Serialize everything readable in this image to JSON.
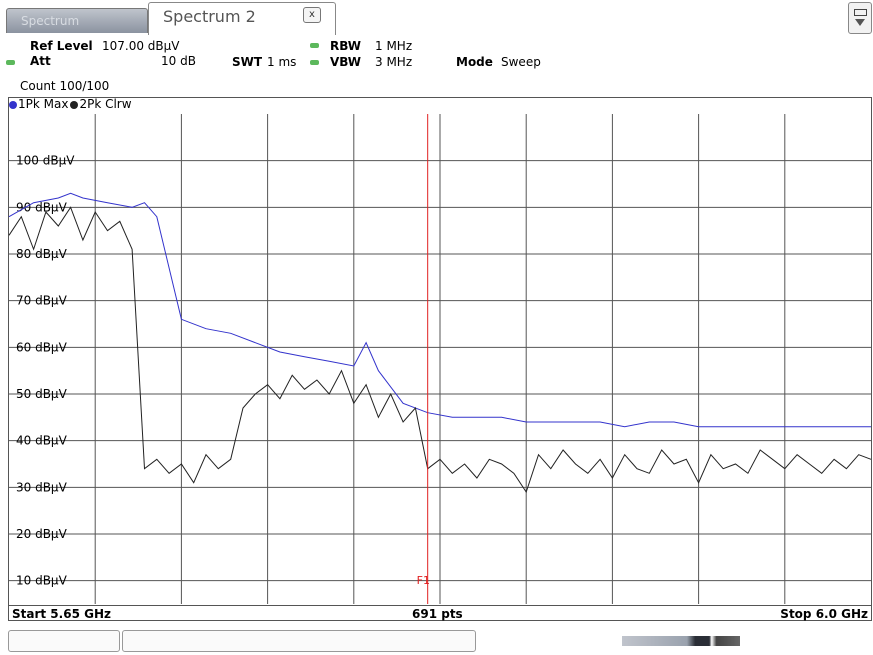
{
  "tabs": [
    {
      "label": "Spectrum",
      "active": false
    },
    {
      "label": "Spectrum 2",
      "active": true
    }
  ],
  "icons": {
    "tab_close": "close-icon",
    "corner": "grid-menu-icon"
  },
  "settings": {
    "ref_level_label": "Ref Level",
    "ref_level_value": "107.00 dBµV",
    "att_label": "Att",
    "att_value": "10 dB",
    "swt_label": "SWT",
    "swt_value": "1 ms",
    "rbw_label": "RBW",
    "rbw_value": "1 MHz",
    "vbw_label": "VBW",
    "vbw_value": "3 MHz",
    "mode_label": "Mode",
    "mode_value": "Sweep",
    "count": "Count 100/100",
    "indicator_color": "#5cb85c"
  },
  "trace_legend": [
    {
      "label": "1Pk Max",
      "color": "#3333cc"
    },
    {
      "label": "2Pk Clrw",
      "color": "#222222"
    }
  ],
  "footer": {
    "start": "Start 5.65 GHz",
    "center": "691 pts",
    "stop": "Stop 6.0 GHz"
  },
  "chart_data": {
    "type": "line",
    "xlim": [
      5.65,
      6.0
    ],
    "ylim": [
      5,
      110
    ],
    "yticks": [
      {
        "value": 100,
        "label": "100 dBµV"
      },
      {
        "value": 90,
        "label": "90 dBµV"
      },
      {
        "value": 80,
        "label": "80 dBµV"
      },
      {
        "value": 70,
        "label": "70 dBµV"
      },
      {
        "value": 60,
        "label": "60 dBµV"
      },
      {
        "value": 50,
        "label": "50 dBµV"
      },
      {
        "value": 40,
        "label": "40 dBµV"
      },
      {
        "value": 30,
        "label": "30 dBµV"
      },
      {
        "value": 20,
        "label": "20 dBµV"
      },
      {
        "value": 10,
        "label": "10 dBµV"
      }
    ],
    "x_gridlines": 10,
    "grid": true,
    "marker": {
      "label": "F1",
      "x": 5.82,
      "color": "#e02020"
    },
    "series": [
      {
        "color": "#3333cc",
        "x": [
          5.65,
          5.66,
          5.67,
          5.675,
          5.68,
          5.69,
          5.7,
          5.705,
          5.71,
          5.72,
          5.73,
          5.74,
          5.75,
          5.76,
          5.77,
          5.78,
          5.79,
          5.795,
          5.8,
          5.81,
          5.82,
          5.83,
          5.84,
          5.85,
          5.86,
          5.87,
          5.88,
          5.89,
          5.9,
          5.91,
          5.92,
          5.93,
          5.94,
          5.95,
          5.96,
          5.97,
          5.98,
          5.99,
          6.0
        ],
        "y": [
          88,
          91,
          92,
          93,
          92,
          91,
          90,
          91,
          88,
          66,
          64,
          63,
          61,
          59,
          58,
          57,
          56,
          61,
          55,
          48,
          46,
          45,
          45,
          45,
          44,
          44,
          44,
          44,
          43,
          44,
          44,
          43,
          43,
          43,
          43,
          43,
          43,
          43,
          43
        ]
      },
      {
        "color": "#222222",
        "x": [
          5.65,
          5.655,
          5.66,
          5.665,
          5.67,
          5.675,
          5.68,
          5.685,
          5.69,
          5.695,
          5.7,
          5.705,
          5.71,
          5.715,
          5.72,
          5.725,
          5.73,
          5.735,
          5.74,
          5.745,
          5.75,
          5.755,
          5.76,
          5.765,
          5.77,
          5.775,
          5.78,
          5.785,
          5.79,
          5.795,
          5.8,
          5.805,
          5.81,
          5.815,
          5.82,
          5.825,
          5.83,
          5.835,
          5.84,
          5.845,
          5.85,
          5.855,
          5.86,
          5.865,
          5.87,
          5.875,
          5.88,
          5.885,
          5.89,
          5.895,
          5.9,
          5.905,
          5.91,
          5.915,
          5.92,
          5.925,
          5.93,
          5.935,
          5.94,
          5.945,
          5.95,
          5.955,
          5.96,
          5.965,
          5.97,
          5.975,
          5.98,
          5.985,
          5.99,
          5.995,
          6.0
        ],
        "y": [
          84,
          88,
          81,
          89,
          86,
          90,
          83,
          89,
          85,
          87,
          81,
          34,
          36,
          33,
          35,
          31,
          37,
          34,
          36,
          47,
          50,
          52,
          49,
          54,
          51,
          53,
          50,
          55,
          48,
          52,
          45,
          50,
          44,
          47,
          34,
          36,
          33,
          35,
          32,
          36,
          35,
          33,
          29,
          37,
          34,
          38,
          35,
          33,
          36,
          32,
          37,
          34,
          33,
          38,
          35,
          36,
          31,
          37,
          34,
          35,
          33,
          38,
          36,
          34,
          37,
          35,
          33,
          36,
          34,
          37,
          36
        ]
      }
    ]
  }
}
